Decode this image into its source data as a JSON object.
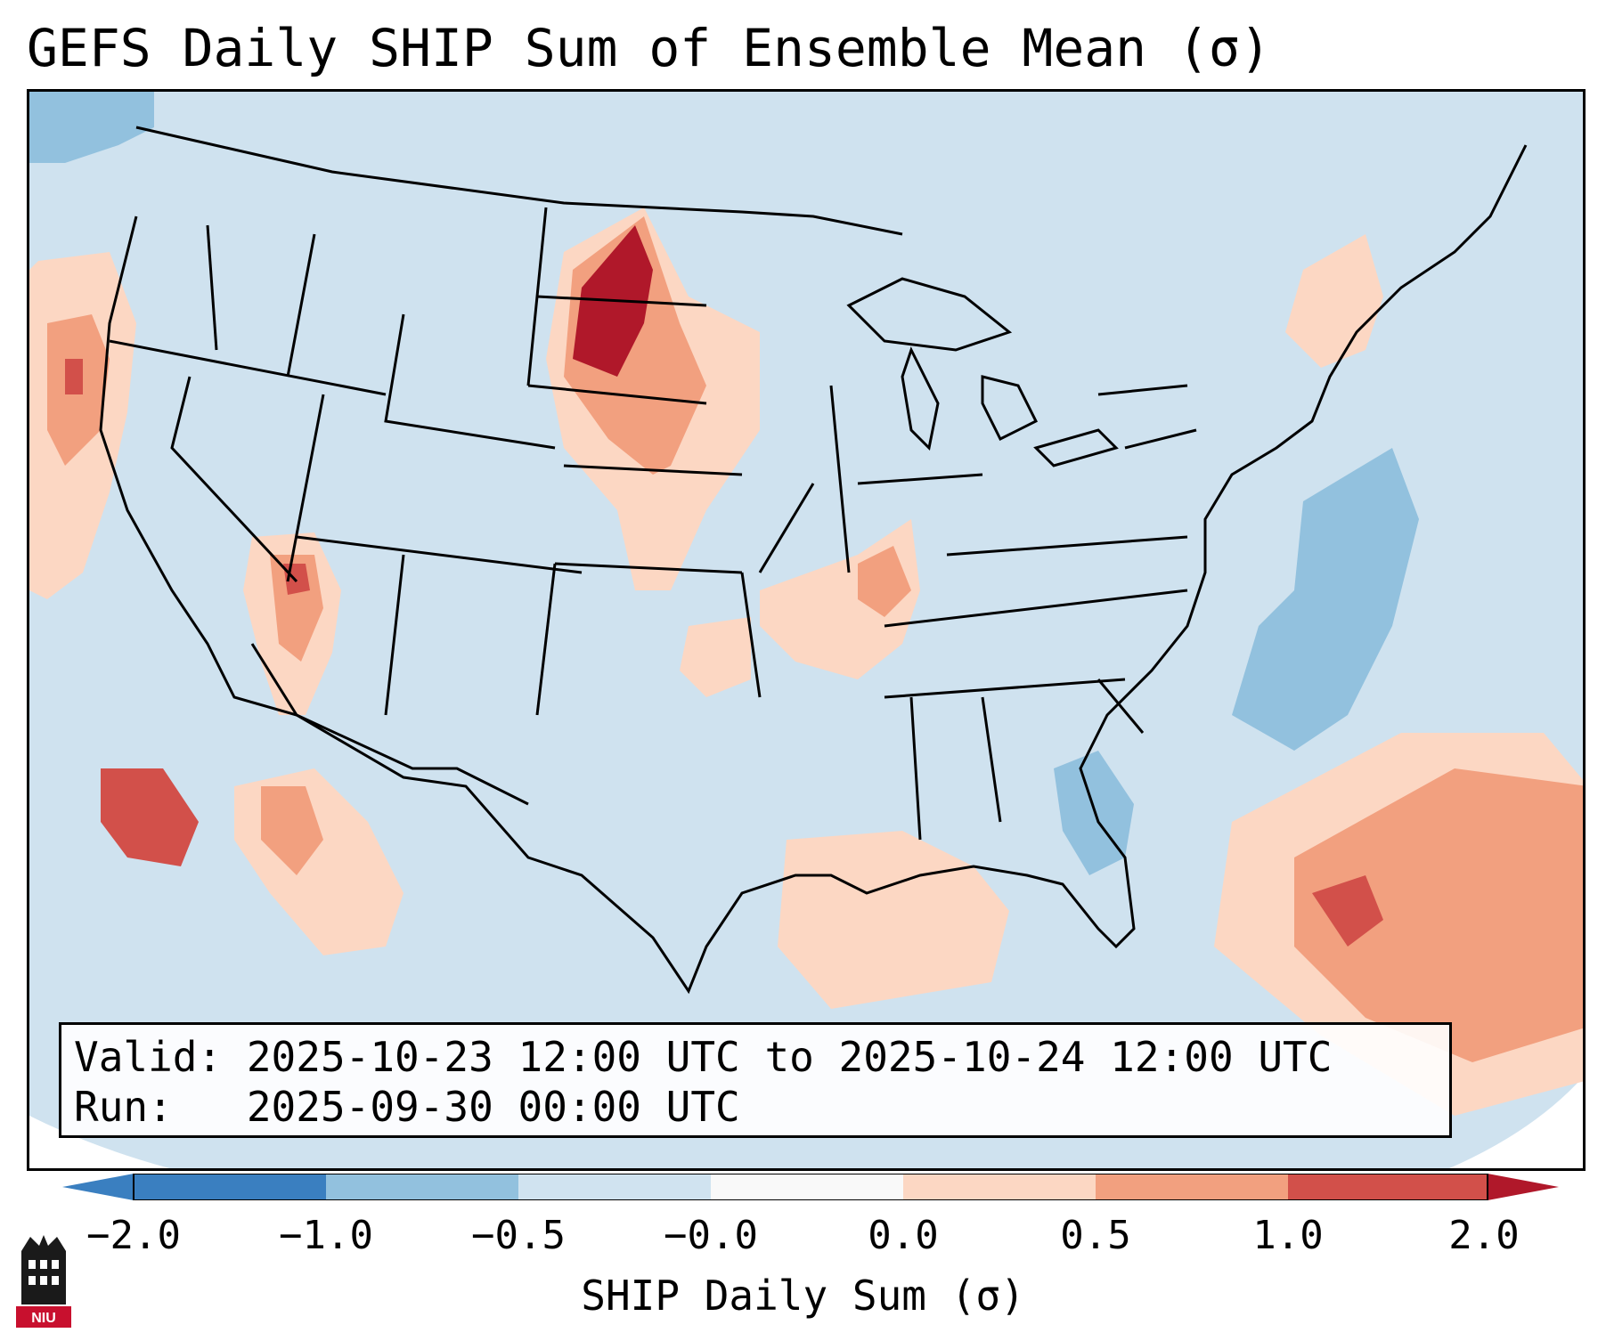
{
  "title": "GEFS Daily SHIP Sum of Ensemble Mean (σ)",
  "info": {
    "valid_line": "Valid: 2025-10-23 12:00 UTC to 2025-10-24 12:00 UTC",
    "run_line": "Run:   2025-09-30 00:00 UTC"
  },
  "colorbar": {
    "label": "SHIP Daily Sum (σ)",
    "ticks": [
      "−2.0",
      "−1.0",
      "−0.5",
      "−0.0",
      "0.0",
      "0.5",
      "1.0",
      "2.0"
    ],
    "colors": [
      "#3a7fc0",
      "#92c1de",
      "#d0e3f0",
      "#f9f9f9",
      "#fcd7c3",
      "#f2a07f",
      "#d2504a",
      "#b0182a"
    ]
  },
  "map": {
    "background_color": "#cfe2ef"
  },
  "logo": {
    "text": "NIU",
    "colors": [
      "#1a1a1a",
      "#c8102e"
    ]
  }
}
